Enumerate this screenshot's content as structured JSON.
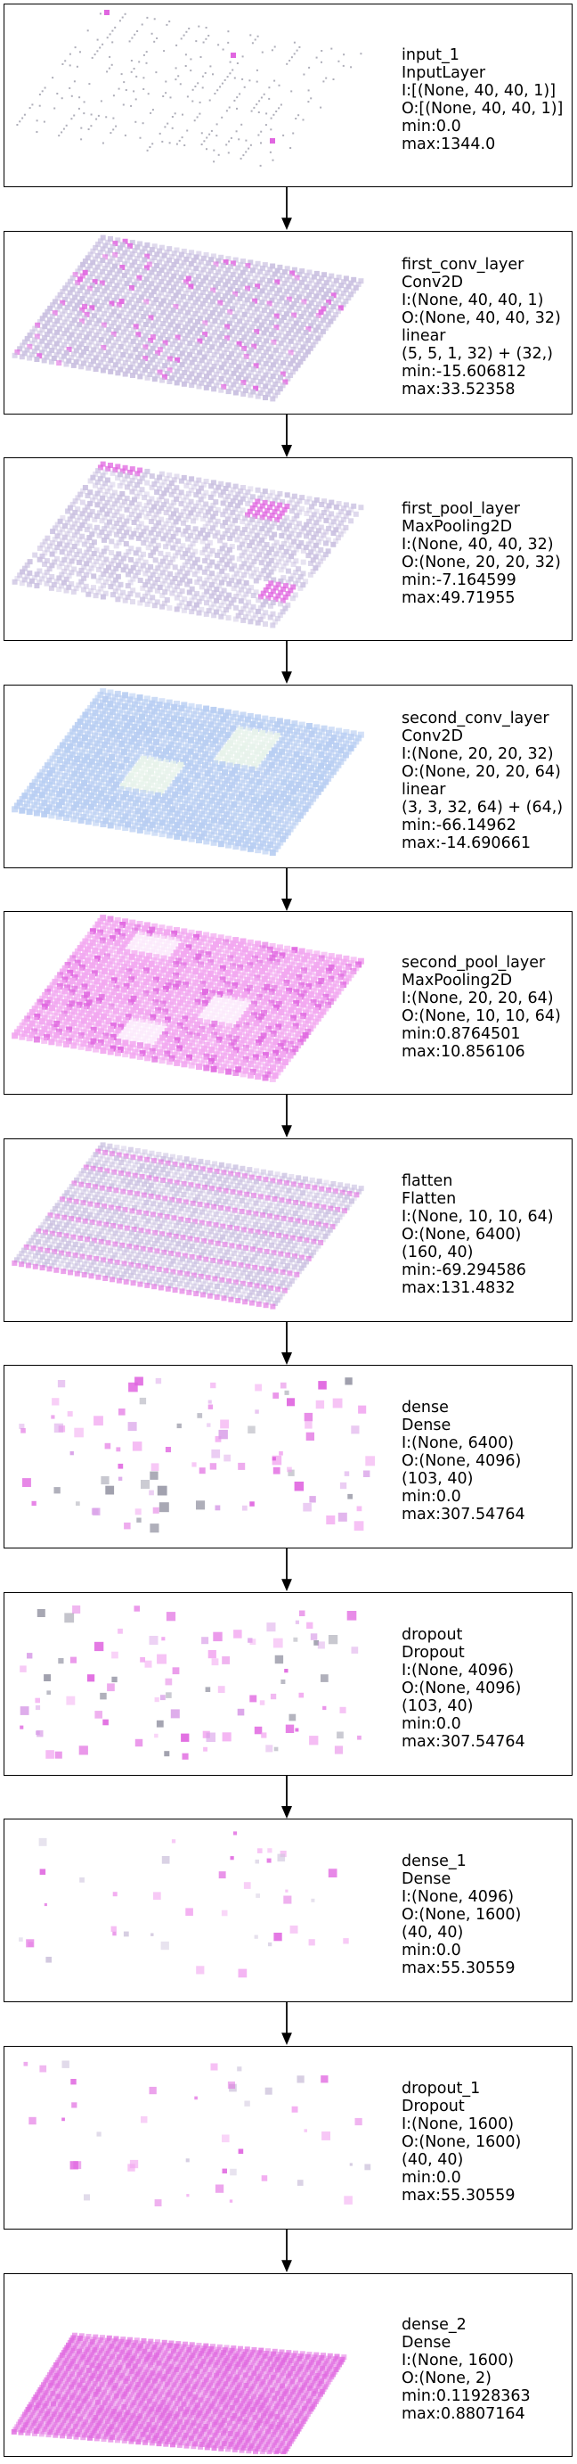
{
  "colors": {
    "magenta": "#e066e0",
    "light_purple": "#c9bfe0",
    "gray": "#9a9aa8",
    "blue": "#b7cdf2",
    "pink": "#f2a6f0"
  },
  "layers": [
    {
      "id": "input_1",
      "viz": "sparse-grid",
      "lines": [
        "input_1",
        "InputLayer",
        "I:[(None, 40, 40, 1)]",
        "O:[(None, 40, 40, 1)]",
        "min:0.0",
        "max:1344.0"
      ]
    },
    {
      "id": "first_conv_layer",
      "viz": "grid-purple",
      "lines": [
        "first_conv_layer",
        "Conv2D",
        "I:(None, 40, 40, 1)",
        "O:(None, 40, 40, 32)",
        "linear",
        "(5, 5, 1, 32) + (32,)",
        "min:-15.606812",
        "max:33.52358"
      ]
    },
    {
      "id": "first_pool_layer",
      "viz": "grid-purple-patches",
      "lines": [
        "first_pool_layer",
        "MaxPooling2D",
        "I:(None, 40, 40, 32)",
        "O:(None, 20, 20, 32)",
        "min:-7.164599",
        "max:49.71955"
      ]
    },
    {
      "id": "second_conv_layer",
      "viz": "grid-blue",
      "lines": [
        "second_conv_layer",
        "Conv2D",
        "I:(None, 20, 20, 32)",
        "O:(None, 20, 20, 64)",
        "linear",
        "(3, 3, 32, 64) + (64,)",
        "min:-66.14962",
        "max:-14.690661"
      ]
    },
    {
      "id": "second_pool_layer",
      "viz": "grid-pink",
      "lines": [
        "second_pool_layer",
        "MaxPooling2D",
        "I:(None, 20, 20, 64)",
        "O:(None, 10, 10, 64)",
        "min:0.8764501",
        "max:10.856106"
      ]
    },
    {
      "id": "flatten",
      "viz": "grid-striped",
      "lines": [
        "flatten",
        "Flatten",
        "I:(None, 10, 10, 64)",
        "O:(None, 6400)",
        "(160, 40)",
        "min:-69.294586",
        "max:131.4832"
      ]
    },
    {
      "id": "dense",
      "viz": "scatter-dense",
      "lines": [
        "dense",
        "Dense",
        "I:(None, 6400)",
        "O:(None, 4096)",
        "(103, 40)",
        "min:0.0",
        "max:307.54764"
      ]
    },
    {
      "id": "dropout",
      "viz": "scatter-dense",
      "lines": [
        "dropout",
        "Dropout",
        "I:(None, 4096)",
        "O:(None, 4096)",
        "(103, 40)",
        "min:0.0",
        "max:307.54764"
      ]
    },
    {
      "id": "dense_1",
      "viz": "scatter-sparse",
      "lines": [
        "dense_1",
        "Dense",
        "I:(None, 4096)",
        "O:(None, 1600)",
        "(40, 40)",
        "min:0.0",
        "max:55.30559"
      ]
    },
    {
      "id": "dropout_1",
      "viz": "scatter-sparse",
      "lines": [
        "dropout_1",
        "Dropout",
        "I:(None, 1600)",
        "O:(None, 1600)",
        "(40, 40)",
        "min:0.0",
        "max:55.30559"
      ]
    },
    {
      "id": "dense_2",
      "viz": "grid-magenta-flat",
      "lines": [
        "dense_2",
        "Dense",
        "I:(None, 1600)",
        "O:(None, 2)",
        "min:0.11928363",
        "max:0.8807164"
      ]
    }
  ]
}
